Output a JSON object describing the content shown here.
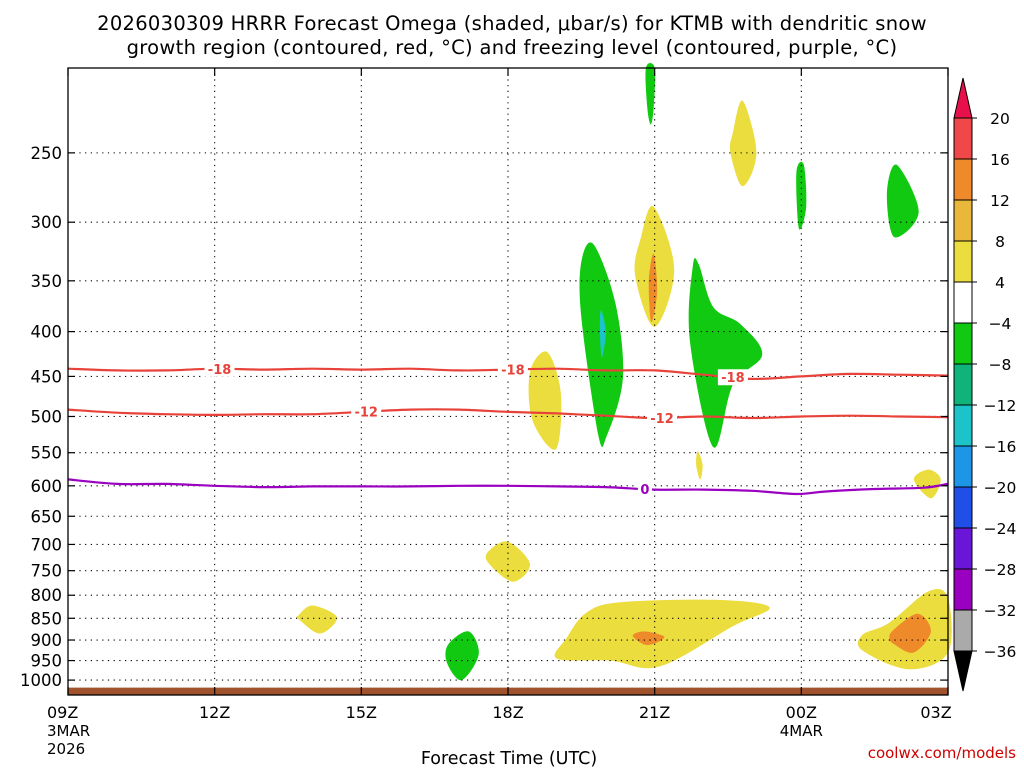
{
  "title_line1": "2026030309 HRRR Forecast Omega (shaded, μbar/s) for KTMB with dendritic snow",
  "title_line2": "growth region (contoured, red, °C) and freezing level (contoured, purple, °C)",
  "credit": "coolwx.com/models",
  "chart_data": {
    "type": "heatmap",
    "title": "2026030309 HRRR Forecast Omega (shaded, μbar/s) for KTMB with dendritic snow growth region (contoured, red, °C) and freezing level (contoured, purple, °C)",
    "xlabel": "Forecast Time (UTC)",
    "ylabel": "",
    "x_range": [
      0,
      18
    ],
    "y_range": [
      200,
      1040
    ],
    "y_scale": "log",
    "grid": true,
    "x_ticks": [
      {
        "x": 0,
        "label": "09Z",
        "sub1": "3MAR",
        "sub2": "2026"
      },
      {
        "x": 3,
        "label": "12Z",
        "sub1": "",
        "sub2": ""
      },
      {
        "x": 6,
        "label": "15Z",
        "sub1": "",
        "sub2": ""
      },
      {
        "x": 9,
        "label": "18Z",
        "sub1": "",
        "sub2": ""
      },
      {
        "x": 12,
        "label": "21Z",
        "sub1": "",
        "sub2": ""
      },
      {
        "x": 15,
        "label": "00Z",
        "sub1": "4MAR",
        "sub2": ""
      },
      {
        "x": 18,
        "label": "03Z",
        "sub1": "",
        "sub2": ""
      }
    ],
    "y_ticks": [
      250,
      300,
      350,
      400,
      450,
      500,
      550,
      600,
      650,
      700,
      750,
      800,
      850,
      900,
      950,
      1000
    ],
    "colorbar": {
      "levels": [
        20,
        16,
        12,
        8,
        4,
        -4,
        -8,
        -12,
        -16,
        -20,
        -24,
        -28,
        -32,
        -36
      ],
      "colors": [
        "#e8104a",
        "#f04848",
        "#ef8a2a",
        "#e9b83a",
        "#ebdd3d",
        "#ffffff",
        "#11c911",
        "#10b47a",
        "#1cc4c9",
        "#1e96e8",
        "#1f4fe6",
        "#6a16d9",
        "#9a00c0",
        "#aaaaaa",
        "#000000"
      ]
    },
    "shaded_regions": [
      {
        "color": "#11c911",
        "points": [
          [
            11.82,
            200
          ],
          [
            12.0,
            200
          ],
          [
            11.98,
            222
          ],
          [
            11.92,
            232
          ],
          [
            11.85,
            222
          ]
        ]
      },
      {
        "color": "#ebdd3d",
        "points": [
          [
            13.6,
            237
          ],
          [
            13.8,
            218
          ],
          [
            14.08,
            250
          ],
          [
            13.8,
            273
          ],
          [
            13.55,
            250
          ]
        ]
      },
      {
        "color": "#11c911",
        "points": [
          [
            14.9,
            263
          ],
          [
            15.05,
            258
          ],
          [
            15.1,
            288
          ],
          [
            14.95,
            305
          ]
        ]
      },
      {
        "color": "#11c911",
        "points": [
          [
            16.95,
            258
          ],
          [
            17.4,
            292
          ],
          [
            16.9,
            312
          ],
          [
            16.75,
            278
          ]
        ]
      },
      {
        "color": "#ebdd3d",
        "points": [
          [
            11.72,
            312
          ],
          [
            11.98,
            288
          ],
          [
            12.4,
            340
          ],
          [
            12.0,
            395
          ],
          [
            11.6,
            345
          ]
        ]
      },
      {
        "color": "#ef8a2a",
        "points": [
          [
            11.98,
            326
          ],
          [
            12.05,
            360
          ],
          [
            11.93,
            390
          ],
          [
            11.88,
            350
          ]
        ]
      },
      {
        "color": "#11c911",
        "points": [
          [
            10.5,
            333
          ],
          [
            10.75,
            318
          ],
          [
            11.2,
            372
          ],
          [
            11.35,
            452
          ],
          [
            11.02,
            526
          ],
          [
            10.85,
            526
          ],
          [
            10.5,
            385
          ]
        ]
      },
      {
        "color": "#1cc4c9",
        "points": [
          [
            10.9,
            378
          ],
          [
            11.0,
            400
          ],
          [
            10.92,
            428
          ],
          [
            10.88,
            400
          ]
        ]
      },
      {
        "color": "#11c911",
        "points": [
          [
            12.78,
            337
          ],
          [
            12.9,
            335
          ],
          [
            13.2,
            375
          ],
          [
            13.75,
            392
          ],
          [
            14.2,
            425
          ],
          [
            13.6,
            460
          ],
          [
            13.2,
            542
          ],
          [
            12.72,
            410
          ]
        ]
      },
      {
        "color": "#ebdd3d",
        "points": [
          [
            9.45,
            445
          ],
          [
            9.8,
            422
          ],
          [
            10.08,
            470
          ],
          [
            9.98,
            545
          ],
          [
            9.5,
            505
          ]
        ]
      },
      {
        "color": "#ebdd3d",
        "points": [
          [
            12.85,
            568
          ],
          [
            12.93,
            590
          ],
          [
            12.98,
            568
          ],
          [
            12.88,
            548
          ]
        ]
      },
      {
        "color": "#ebdd3d",
        "points": [
          [
            17.3,
            590
          ],
          [
            17.6,
            575
          ],
          [
            17.85,
            590
          ],
          [
            17.65,
            620
          ]
        ]
      },
      {
        "color": "#ebdd3d",
        "points": [
          [
            8.6,
            713
          ],
          [
            9.0,
            695
          ],
          [
            9.45,
            737
          ],
          [
            9.1,
            772
          ],
          [
            8.6,
            735
          ]
        ]
      },
      {
        "color": "#ebdd3d",
        "points": [
          [
            4.7,
            845
          ],
          [
            5.0,
            822
          ],
          [
            5.5,
            848
          ],
          [
            5.15,
            885
          ],
          [
            4.7,
            850
          ]
        ]
      },
      {
        "color": "#11c911",
        "points": [
          [
            7.78,
            910
          ],
          [
            8.2,
            880
          ],
          [
            8.4,
            935
          ],
          [
            8.05,
            1000
          ],
          [
            7.75,
            955
          ]
        ]
      },
      {
        "color": "#ebdd3d",
        "points": [
          [
            10.2,
            895
          ],
          [
            10.6,
            838
          ],
          [
            11.3,
            815
          ],
          [
            13.3,
            810
          ],
          [
            14.35,
            826
          ],
          [
            13.6,
            868
          ],
          [
            12.1,
            965
          ],
          [
            11.1,
            950
          ],
          [
            10.0,
            945
          ]
        ]
      },
      {
        "color": "#ef8a2a",
        "points": [
          [
            11.55,
            890
          ],
          [
            11.8,
            880
          ],
          [
            12.2,
            893
          ],
          [
            11.85,
            912
          ]
        ]
      },
      {
        "color": "#ebdd3d",
        "points": [
          [
            16.25,
            888
          ],
          [
            16.8,
            860
          ],
          [
            17.6,
            792
          ],
          [
            18.0,
            806
          ],
          [
            18.0,
            930
          ],
          [
            17.2,
            972
          ],
          [
            16.25,
            925
          ]
        ]
      },
      {
        "color": "#ef8a2a",
        "points": [
          [
            16.8,
            895
          ],
          [
            16.9,
            875
          ],
          [
            17.38,
            840
          ],
          [
            17.65,
            880
          ],
          [
            17.3,
            930
          ],
          [
            16.9,
            910
          ]
        ]
      }
    ],
    "contours": [
      {
        "value": "-18",
        "color": "#e8433a",
        "label_at": [
          3.1,
          13.6,
          9.1
        ],
        "points": [
          [
            0,
            441
          ],
          [
            1,
            443
          ],
          [
            2,
            443
          ],
          [
            3,
            441
          ],
          [
            4,
            442
          ],
          [
            5,
            441
          ],
          [
            6,
            442
          ],
          [
            7,
            441
          ],
          [
            8,
            443
          ],
          [
            9,
            442
          ],
          [
            10,
            441
          ],
          [
            11,
            443
          ],
          [
            12,
            443
          ],
          [
            13,
            448
          ],
          [
            14,
            453
          ],
          [
            15,
            450
          ],
          [
            16,
            447
          ],
          [
            17,
            448
          ],
          [
            18,
            449
          ]
        ]
      },
      {
        "value": "-12",
        "color": "#e8433a",
        "label_at": [
          6.1,
          12.15
        ],
        "points": [
          [
            0,
            491
          ],
          [
            1,
            495
          ],
          [
            2,
            497
          ],
          [
            3,
            498
          ],
          [
            4,
            497
          ],
          [
            5,
            497
          ],
          [
            6,
            494
          ],
          [
            7,
            491
          ],
          [
            8,
            491
          ],
          [
            9,
            494
          ],
          [
            10,
            496
          ],
          [
            11,
            499
          ],
          [
            12,
            502
          ],
          [
            13,
            500
          ],
          [
            14,
            502
          ],
          [
            15,
            500
          ],
          [
            16,
            499
          ],
          [
            17,
            500
          ],
          [
            18,
            501
          ]
        ]
      },
      {
        "value": "0",
        "color": "#9a00c0",
        "label_at": [
          11.8
        ],
        "points": [
          [
            0,
            590
          ],
          [
            1,
            597
          ],
          [
            2,
            597
          ],
          [
            3,
            600
          ],
          [
            4,
            602
          ],
          [
            5,
            601
          ],
          [
            6,
            601
          ],
          [
            7,
            601
          ],
          [
            8,
            600
          ],
          [
            9,
            600
          ],
          [
            10,
            601
          ],
          [
            11,
            602
          ],
          [
            12,
            606
          ],
          [
            13,
            606
          ],
          [
            14,
            608
          ],
          [
            14.9,
            613
          ],
          [
            15.5,
            609
          ],
          [
            16.5,
            605
          ],
          [
            17.5,
            603
          ],
          [
            18,
            597
          ]
        ]
      }
    ],
    "ground": {
      "from": 1020,
      "to": 1040,
      "color": "#a0522d"
    }
  }
}
